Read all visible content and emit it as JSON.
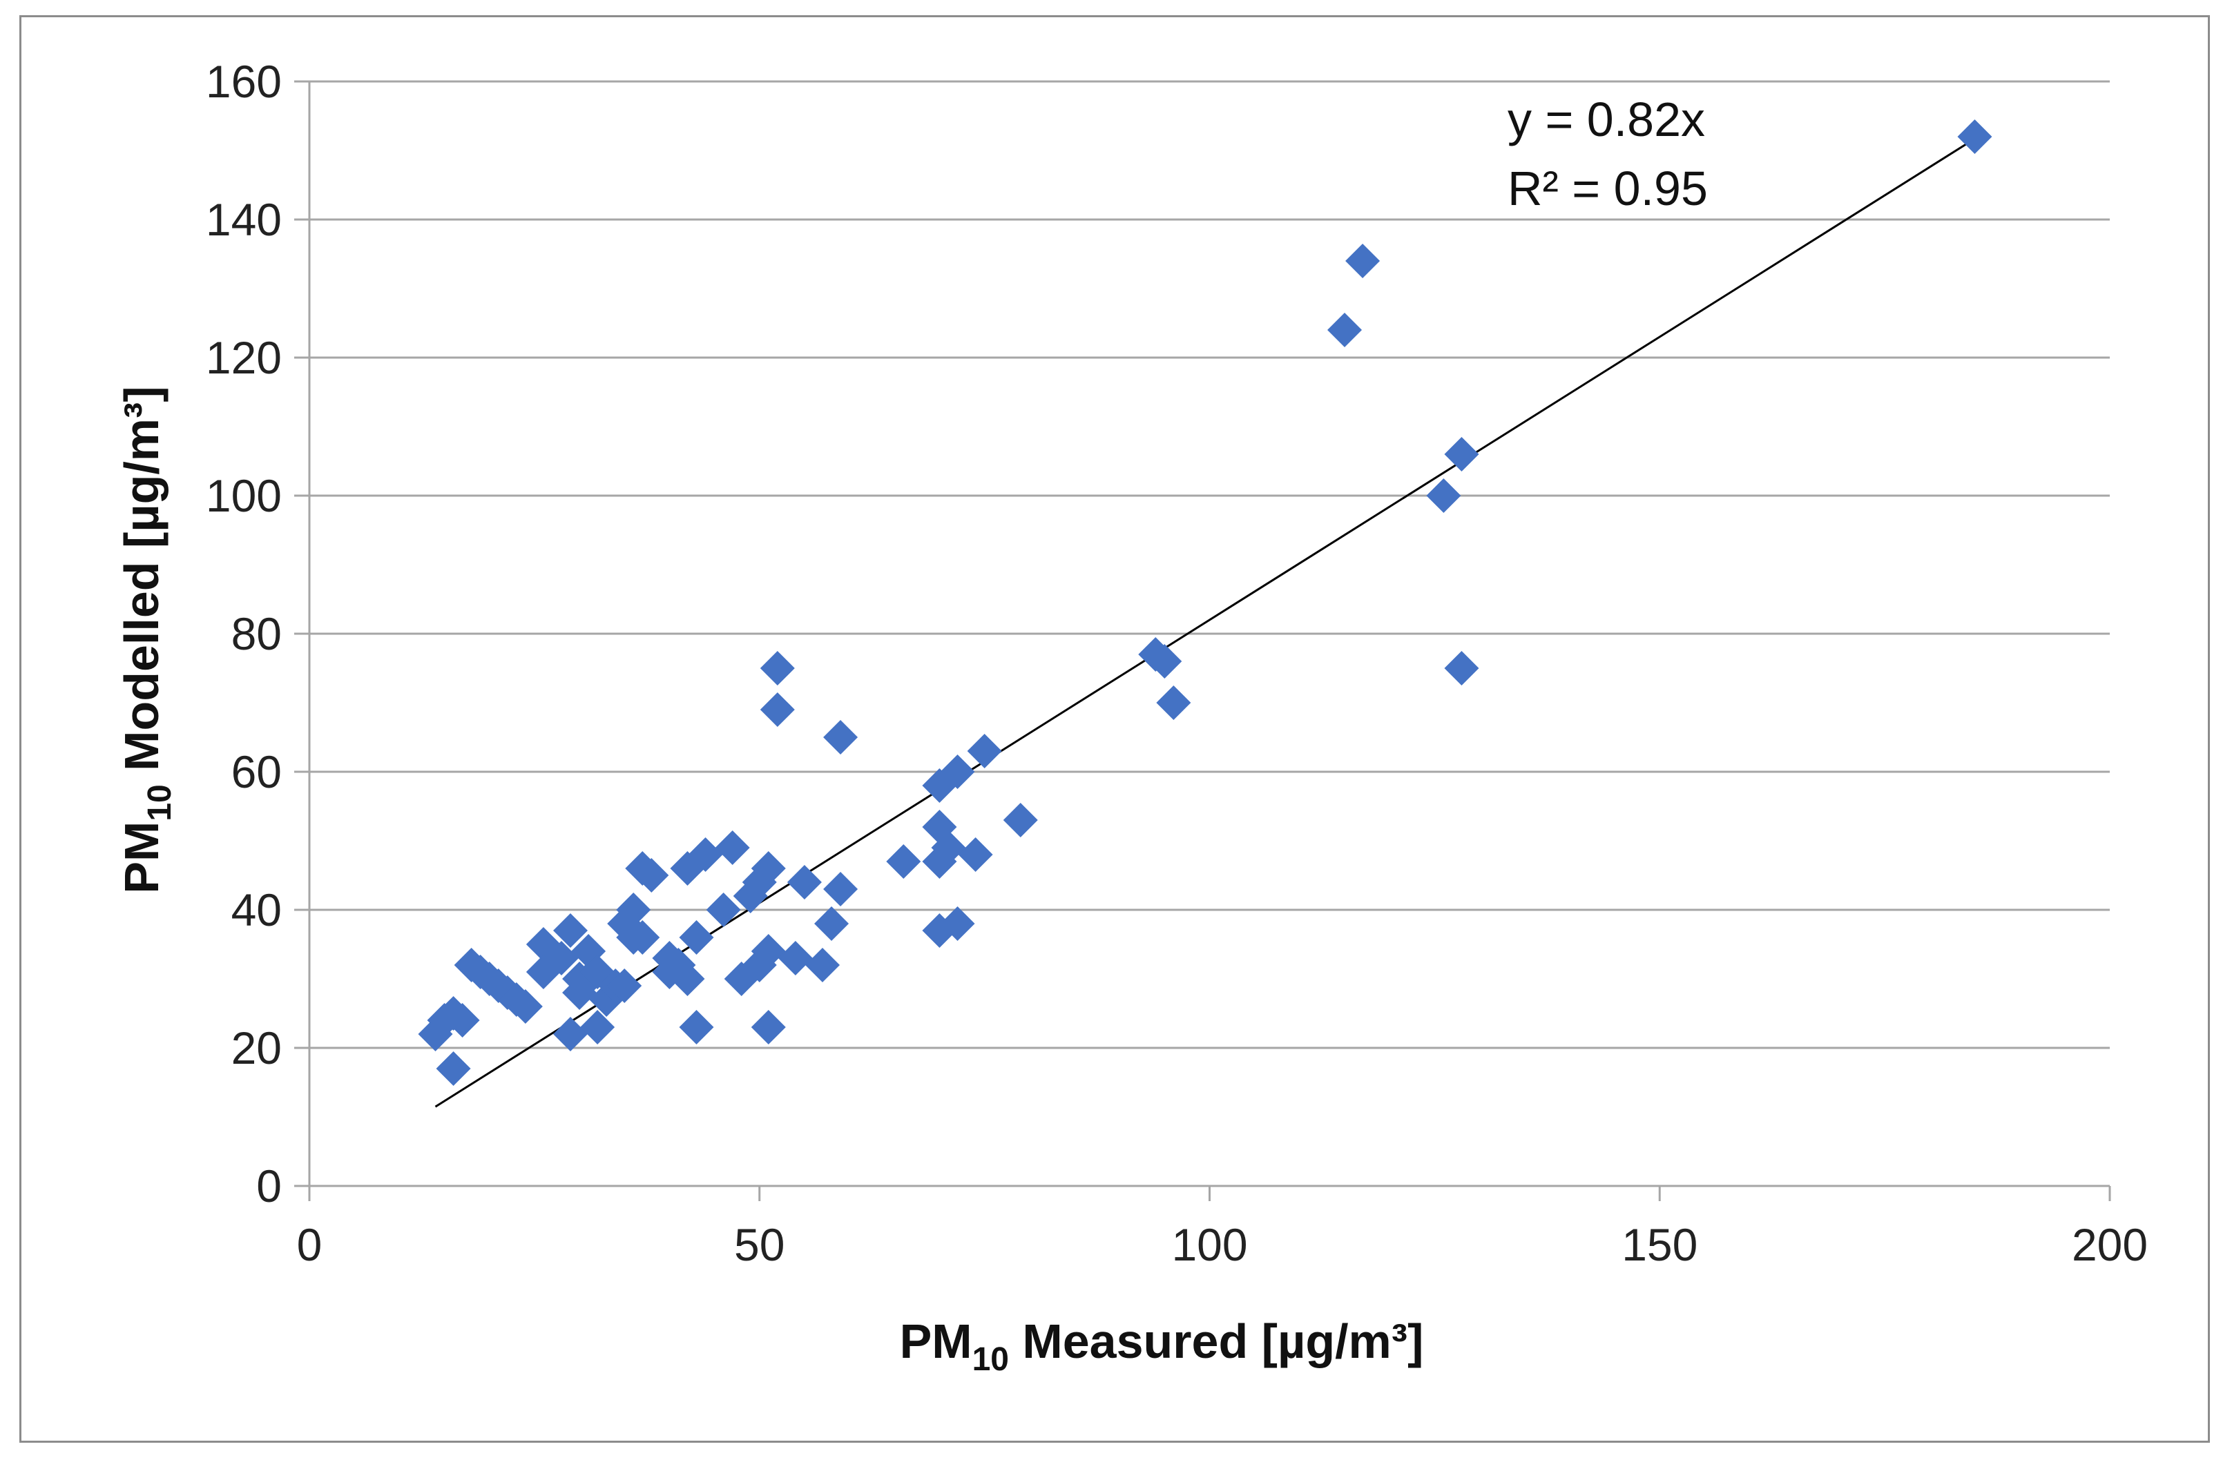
{
  "chart_data": {
    "type": "scatter",
    "title": "",
    "xlabel": {
      "prefix": "PM",
      "sub": "10",
      "suffix": " Measured [µg/m³]"
    },
    "ylabel": {
      "prefix": "PM",
      "sub": "10",
      "suffix": " Modelled [µg/m³]"
    },
    "xlim": [
      0,
      200
    ],
    "ylim": [
      0,
      160
    ],
    "xticks": [
      0,
      50,
      100,
      150,
      200
    ],
    "yticks": [
      0,
      20,
      40,
      60,
      80,
      100,
      120,
      140,
      160
    ],
    "grid": {
      "horizontal": true,
      "vertical": false
    },
    "marker": {
      "shape": "diamond",
      "color": "#4472C4"
    },
    "trendline": {
      "slope": 0.82,
      "x_range": [
        14,
        185
      ],
      "color": "#000000",
      "equation": "y = 0.82x",
      "r_squared": "R² = 0.95"
    },
    "series": [
      {
        "name": "PM10",
        "points": [
          [
            14,
            22
          ],
          [
            15,
            24
          ],
          [
            16,
            25
          ],
          [
            16,
            17
          ],
          [
            17,
            24
          ],
          [
            18,
            32
          ],
          [
            19,
            31
          ],
          [
            20,
            30
          ],
          [
            21,
            29
          ],
          [
            22,
            28
          ],
          [
            23,
            27
          ],
          [
            24,
            26
          ],
          [
            26,
            35
          ],
          [
            26,
            31
          ],
          [
            28,
            33
          ],
          [
            29,
            37
          ],
          [
            29,
            22
          ],
          [
            30,
            30
          ],
          [
            30,
            28
          ],
          [
            31,
            34
          ],
          [
            31,
            30
          ],
          [
            32,
            31
          ],
          [
            32,
            23
          ],
          [
            33,
            27
          ],
          [
            34,
            29
          ],
          [
            35,
            29
          ],
          [
            35,
            38
          ],
          [
            36,
            40
          ],
          [
            36,
            36
          ],
          [
            37,
            46
          ],
          [
            37,
            36
          ],
          [
            38,
            45
          ],
          [
            40,
            31
          ],
          [
            40,
            33
          ],
          [
            41,
            32
          ],
          [
            42,
            46
          ],
          [
            42,
            30
          ],
          [
            43,
            36
          ],
          [
            43,
            23
          ],
          [
            44,
            48
          ],
          [
            46,
            40
          ],
          [
            47,
            49
          ],
          [
            48,
            30
          ],
          [
            49,
            42
          ],
          [
            50,
            32
          ],
          [
            50,
            44
          ],
          [
            51,
            34
          ],
          [
            51,
            46
          ],
          [
            51,
            23
          ],
          [
            52,
            75
          ],
          [
            52,
            69
          ],
          [
            54,
            33
          ],
          [
            55,
            44
          ],
          [
            57,
            32
          ],
          [
            58,
            38
          ],
          [
            59,
            43
          ],
          [
            59,
            65
          ],
          [
            66,
            47
          ],
          [
            70,
            58
          ],
          [
            70,
            52
          ],
          [
            70,
            47
          ],
          [
            70,
            37
          ],
          [
            71,
            49
          ],
          [
            72,
            60
          ],
          [
            72,
            38
          ],
          [
            74,
            48
          ],
          [
            75,
            63
          ],
          [
            79,
            53
          ],
          [
            94,
            77
          ],
          [
            95,
            76
          ],
          [
            96,
            70
          ],
          [
            115,
            124
          ],
          [
            117,
            134
          ],
          [
            126,
            100
          ],
          [
            128,
            106
          ],
          [
            128,
            75
          ],
          [
            185,
            152
          ]
        ]
      }
    ]
  }
}
